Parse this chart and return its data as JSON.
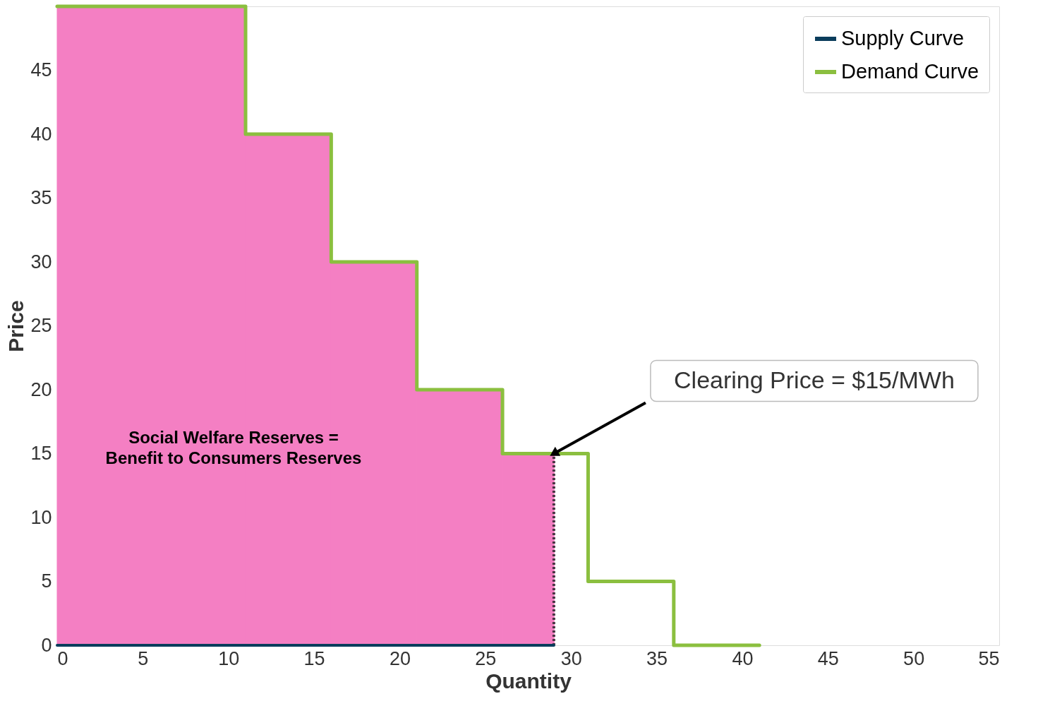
{
  "chart_data": {
    "type": "line",
    "xlabel": "Quantity",
    "ylabel": "Price",
    "xlim": [
      0,
      55
    ],
    "xticks": [
      0,
      5,
      10,
      15,
      20,
      25,
      30,
      35,
      40,
      45,
      50,
      55
    ],
    "ylim": [
      0,
      50
    ],
    "yticks": [
      0,
      5,
      10,
      15,
      20,
      25,
      30,
      35,
      40,
      45
    ],
    "grid": false,
    "legend": "top right",
    "series": [
      {
        "type": "area",
        "color": "#f47fc3",
        "x": [
          0,
          11,
          16,
          21,
          26,
          29
        ],
        "values": [
          50,
          40,
          30,
          20,
          15,
          15
        ]
      },
      {
        "color": "#4a3545",
        "line_style": "dotted",
        "x": [
          29,
          29
        ],
        "values": [
          0,
          15
        ]
      },
      {
        "name": "Supply Curve",
        "color": "#0b3d5c",
        "x": [
          0,
          29
        ],
        "values": [
          0,
          0
        ]
      },
      {
        "name": "Demand Curve",
        "type": "step",
        "color": "#8bbf3f",
        "x": [
          0,
          11,
          16,
          21,
          26,
          31,
          36,
          41
        ],
        "values": [
          50,
          40,
          30,
          20,
          15,
          5,
          0,
          0
        ]
      }
    ],
    "annotations": [
      "Social Welfare Reserves =\nBenefit to Consumers Reserves",
      {
        "text": "Clearing Price = $15/MWh",
        "x": 29,
        "y": 15
      }
    ]
  }
}
